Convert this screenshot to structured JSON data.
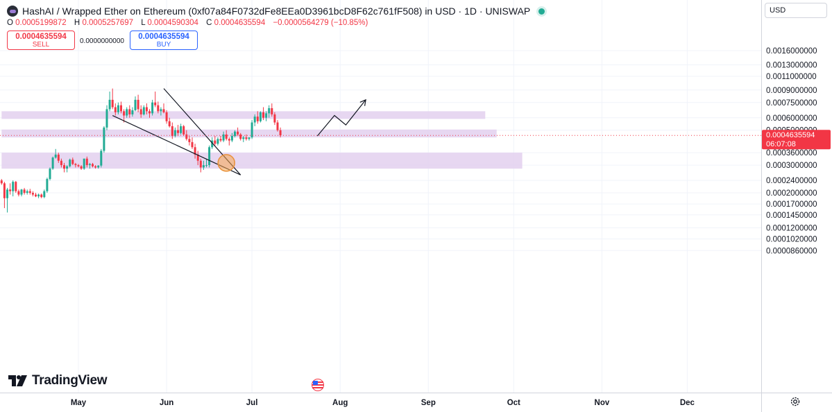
{
  "header": {
    "title": "HashAI / Wrapped Ether on Ethereum (0xf07a84F0732dFe8EEa0D3961bcD8F62c761fF508) in USD · 1D · UNISWAP",
    "ohlc": {
      "o_label": "O",
      "o_value": "0.0005199872",
      "h_label": "H",
      "h_value": "0.0005257697",
      "l_label": "L",
      "l_value": "0.0004590304",
      "c_label": "C",
      "c_value": "0.0004635594",
      "change": "−0.0000564279 (−10.85%)"
    },
    "sell": {
      "price": "0.0004635594",
      "label": "SELL"
    },
    "spread": "0.0000000000",
    "buy": {
      "price": "0.0004635594",
      "label": "BUY"
    },
    "currency": "USD"
  },
  "colors": {
    "up": "#22ab94",
    "down": "#f23645",
    "zone": "#e3d0ee",
    "price_tag": "#f23645",
    "text": "#131722"
  },
  "branding": {
    "name": "TradingView"
  },
  "chart_data": {
    "type": "candlestick",
    "y_scale": "log",
    "y_range": [
      8e-05,
      0.0019
    ],
    "y_ticks": [
      {
        "label": "0.0016000000",
        "value": 0.0016
      },
      {
        "label": "0.0013000000",
        "value": 0.0013
      },
      {
        "label": "0.0011000000",
        "value": 0.0011
      },
      {
        "label": "0.0009000000",
        "value": 0.0009
      },
      {
        "label": "0.0007500000",
        "value": 0.00075
      },
      {
        "label": "0.0006000000",
        "value": 0.0006
      },
      {
        "label": "0.0005000000",
        "value": 0.0005
      },
      {
        "label": "0.0003600000",
        "value": 0.00036
      },
      {
        "label": "0.0003000000",
        "value": 0.0003
      },
      {
        "label": "0.0002400000",
        "value": 0.00024
      },
      {
        "label": "0.0002000000",
        "value": 0.0002
      },
      {
        "label": "0.0001700000",
        "value": 0.00017
      },
      {
        "label": "0.0001450000",
        "value": 0.000145
      },
      {
        "label": "0.0001200000",
        "value": 0.00012
      },
      {
        "label": "0.0001020000",
        "value": 0.000102
      },
      {
        "label": "0.0000860000",
        "value": 8.6e-05
      }
    ],
    "x_ticks": [
      {
        "label": "May",
        "day": 0
      },
      {
        "label": "Jun",
        "day": 31
      },
      {
        "label": "Jul",
        "day": 61
      },
      {
        "label": "Aug",
        "day": 92
      },
      {
        "label": "Sep",
        "day": 123
      },
      {
        "label": "Oct",
        "day": 153
      },
      {
        "label": "Nov",
        "day": 184
      },
      {
        "label": "Dec",
        "day": 214
      }
    ],
    "last_price": {
      "label": "0.0004635594",
      "countdown": "06:07:08",
      "value": 0.0004635594
    },
    "zones": [
      {
        "start_day": -27,
        "end_day": 143,
        "low": 0.00059,
        "high": 0.00066
      },
      {
        "start_day": -27,
        "end_day": 147,
        "low": 0.00045,
        "high": 0.000505
      },
      {
        "start_day": -27,
        "end_day": 156,
        "low": 0.000285,
        "high": 0.00036
      }
    ],
    "annotations": {
      "trend_upper": [
        {
          "day": 30,
          "price": 0.00092
        },
        {
          "day": 57,
          "price": 0.00026
        }
      ],
      "trend_lower": [
        {
          "day": 12,
          "price": 0.00062
        },
        {
          "day": 57,
          "price": 0.00026
        }
      ],
      "projection": [
        {
          "day": 84,
          "price": 0.00046
        },
        {
          "day": 90,
          "price": 0.00062
        },
        {
          "day": 94,
          "price": 0.00054
        },
        {
          "day": 101,
          "price": 0.00078
        }
      ],
      "circle": {
        "day": 52,
        "price": 0.00031
      }
    },
    "candles": [
      [
        -27,
        0.00024,
        0.000245,
        0.000225,
        0.00023
      ],
      [
        -26,
        0.00023,
        0.000235,
        0.00016,
        0.000185
      ],
      [
        -25,
        0.000185,
        0.000215,
        0.00015,
        0.00021
      ],
      [
        -24,
        0.00021,
        0.00023,
        0.000195,
        0.000205
      ],
      [
        -23,
        0.000205,
        0.00024,
        0.00019,
        0.000235
      ],
      [
        -22,
        0.000235,
        0.000238,
        0.0002,
        0.000205
      ],
      [
        -21,
        0.000205,
        0.00021,
        0.00019,
        0.000195
      ],
      [
        -20,
        0.000195,
        0.000212,
        0.00019,
        0.00021
      ],
      [
        -19,
        0.00021,
        0.000215,
        0.000195,
        0.0002
      ],
      [
        -18,
        0.0002,
        0.00021,
        0.000195,
        0.000205
      ],
      [
        -17,
        0.000205,
        0.000212,
        0.000195,
        0.0002
      ],
      [
        -16,
        0.0002,
        0.000205,
        0.00019,
        0.000195
      ],
      [
        -15,
        0.000195,
        0.0002,
        0.000188,
        0.00019
      ],
      [
        -14,
        0.00019,
        0.000198,
        0.000185,
        0.000195
      ],
      [
        -13,
        0.000195,
        0.000198,
        0.000185,
        0.000188
      ],
      [
        -12,
        0.000188,
        0.00021,
        0.000185,
        0.000205
      ],
      [
        -11,
        0.000205,
        0.00025,
        0.0002,
        0.000245
      ],
      [
        -10,
        0.000245,
        0.00029,
        0.00024,
        0.000285
      ],
      [
        -9,
        0.000285,
        0.00034,
        0.00028,
        0.000335
      ],
      [
        -8,
        0.000335,
        0.00038,
        0.00033,
        0.00035
      ],
      [
        -7,
        0.00035,
        0.00036,
        0.00031,
        0.00032
      ],
      [
        -6,
        0.00032,
        0.00033,
        0.00029,
        0.0003
      ],
      [
        -5,
        0.0003,
        0.00031,
        0.00027,
        0.000285
      ],
      [
        -4,
        0.000285,
        0.0003,
        0.00027,
        0.000295
      ],
      [
        -3,
        0.000295,
        0.00033,
        0.00029,
        0.000325
      ],
      [
        -2,
        0.000325,
        0.000335,
        0.0003,
        0.000305
      ],
      [
        -1,
        0.000305,
        0.00031,
        0.00029,
        0.0003
      ],
      [
        0,
        0.0003,
        0.000305,
        0.00029,
        0.000295
      ],
      [
        1,
        0.000295,
        0.0003,
        0.00028,
        0.000285
      ],
      [
        2,
        0.000285,
        0.00033,
        0.00028,
        0.00033
      ],
      [
        3,
        0.00033,
        0.00034,
        0.00029,
        0.0003
      ],
      [
        4,
        0.0003,
        0.00031,
        0.000285,
        0.000305
      ],
      [
        5,
        0.000305,
        0.00031,
        0.00029,
        0.000295
      ],
      [
        6,
        0.000295,
        0.0003,
        0.000285,
        0.00029
      ],
      [
        7,
        0.00029,
        0.0003,
        0.000285,
        0.000298
      ],
      [
        8,
        0.000298,
        0.00038,
        0.00029,
        0.00037
      ],
      [
        9,
        0.00037,
        0.00053,
        0.00036,
        0.00052
      ],
      [
        10,
        0.00052,
        0.00072,
        0.0005,
        0.00068
      ],
      [
        11,
        0.00068,
        0.00088,
        0.00066,
        0.00078
      ],
      [
        12,
        0.00078,
        0.00092,
        0.00068,
        0.0007
      ],
      [
        13,
        0.0007,
        0.00074,
        0.00062,
        0.00065
      ],
      [
        14,
        0.00065,
        0.00075,
        0.00063,
        0.00072
      ],
      [
        15,
        0.00072,
        0.00076,
        0.00064,
        0.00066
      ],
      [
        16,
        0.00066,
        0.00068,
        0.00056,
        0.00062
      ],
      [
        17,
        0.00062,
        0.0007,
        0.0006,
        0.00068
      ],
      [
        18,
        0.00068,
        0.00072,
        0.0006,
        0.00063
      ],
      [
        19,
        0.00063,
        0.0007,
        0.00061,
        0.00067
      ],
      [
        20,
        0.00067,
        0.00082,
        0.00066,
        0.00078
      ],
      [
        21,
        0.00078,
        0.00084,
        0.00065,
        0.00068
      ],
      [
        22,
        0.00068,
        0.00072,
        0.0006,
        0.00063
      ],
      [
        23,
        0.00063,
        0.00072,
        0.00062,
        0.0007
      ],
      [
        24,
        0.0007,
        0.00074,
        0.00063,
        0.00066
      ],
      [
        25,
        0.00066,
        0.00068,
        0.0006,
        0.00064
      ],
      [
        26,
        0.00064,
        0.00078,
        0.00062,
        0.00075
      ],
      [
        27,
        0.00075,
        0.00088,
        0.0007,
        0.00072
      ],
      [
        28,
        0.00072,
        0.00076,
        0.00064,
        0.00066
      ],
      [
        29,
        0.00066,
        0.0007,
        0.00062,
        0.00068
      ],
      [
        30,
        0.00068,
        0.00074,
        0.00064,
        0.00065
      ],
      [
        31,
        0.00065,
        0.00067,
        0.00055,
        0.00057
      ],
      [
        32,
        0.00057,
        0.0006,
        0.00052,
        0.00053
      ],
      [
        33,
        0.00053,
        0.00056,
        0.00044,
        0.00046
      ],
      [
        34,
        0.00046,
        0.00052,
        0.00045,
        0.0005
      ],
      [
        35,
        0.0005,
        0.00054,
        0.00046,
        0.00048
      ],
      [
        36,
        0.00048,
        0.00055,
        0.00047,
        0.00053
      ],
      [
        37,
        0.00053,
        0.00054,
        0.00046,
        0.00047
      ],
      [
        38,
        0.00047,
        0.0005,
        0.00043,
        0.00044
      ],
      [
        39,
        0.00044,
        0.00046,
        0.0004,
        0.00042
      ],
      [
        40,
        0.00042,
        0.00045,
        0.00038,
        0.00039
      ],
      [
        41,
        0.00039,
        0.00041,
        0.00033,
        0.00035
      ],
      [
        42,
        0.00035,
        0.00037,
        0.0003,
        0.00032
      ],
      [
        43,
        0.00032,
        0.00033,
        0.00027,
        0.00029
      ],
      [
        44,
        0.00029,
        0.00032,
        0.00028,
        0.0003
      ],
      [
        45,
        0.0003,
        0.00033,
        0.00029,
        0.0003
      ],
      [
        46,
        0.0003,
        0.0004,
        0.00029,
        0.00039
      ],
      [
        47,
        0.00039,
        0.00045,
        0.00038,
        0.00043
      ],
      [
        48,
        0.00043,
        0.00046,
        0.0004,
        0.00041
      ],
      [
        49,
        0.00041,
        0.00045,
        0.0004,
        0.00044
      ],
      [
        50,
        0.00044,
        0.00046,
        0.00042,
        0.00043
      ],
      [
        51,
        0.00043,
        0.00049,
        0.00042,
        0.00047
      ],
      [
        52,
        0.00047,
        0.0005,
        0.00043,
        0.00044
      ],
      [
        53,
        0.00044,
        0.00045,
        0.0004,
        0.00043
      ],
      [
        54,
        0.00043,
        0.00048,
        0.00042,
        0.00046
      ],
      [
        55,
        0.00046,
        0.0005,
        0.00045,
        0.00049
      ],
      [
        56,
        0.00049,
        0.00052,
        0.00046,
        0.00047
      ],
      [
        57,
        0.00047,
        0.00048,
        0.00043,
        0.00044
      ],
      [
        58,
        0.00044,
        0.00046,
        0.00042,
        0.00045
      ],
      [
        59,
        0.00045,
        0.00047,
        0.00043,
        0.00044
      ],
      [
        60,
        0.00044,
        0.00045,
        0.00043,
        0.00045
      ],
      [
        61,
        0.00045,
        0.00058,
        0.00044,
        0.00056
      ],
      [
        62,
        0.00056,
        0.00063,
        0.00053,
        0.00061
      ],
      [
        63,
        0.00061,
        0.00066,
        0.00055,
        0.00057
      ],
      [
        64,
        0.00057,
        0.00066,
        0.00056,
        0.00065
      ],
      [
        65,
        0.00065,
        0.0007,
        0.00058,
        0.0006
      ],
      [
        66,
        0.0006,
        0.00066,
        0.00057,
        0.00064
      ],
      [
        67,
        0.00064,
        0.00072,
        0.0006,
        0.00069
      ],
      [
        68,
        0.00069,
        0.00074,
        0.00061,
        0.00063
      ],
      [
        69,
        0.00063,
        0.00065,
        0.00054,
        0.00056
      ],
      [
        70,
        0.00056,
        0.00058,
        0.00049,
        0.0005
      ],
      [
        71,
        0.0005,
        0.00052,
        0.00045,
        0.000464
      ]
    ]
  }
}
